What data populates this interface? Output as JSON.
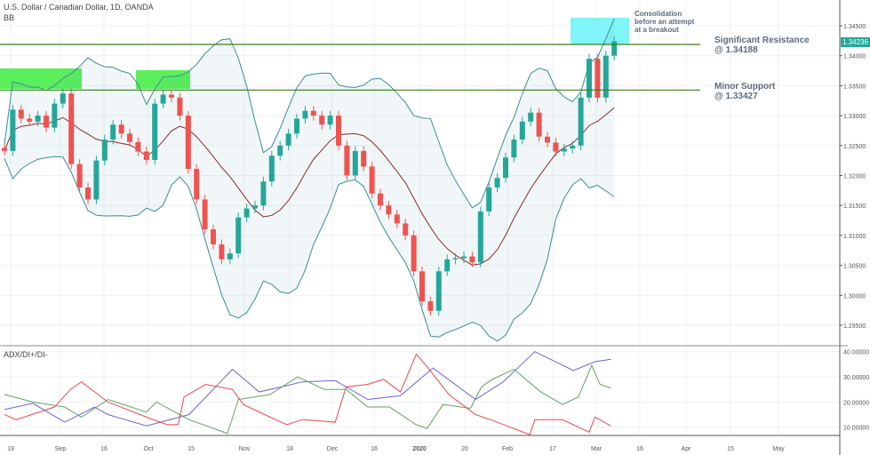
{
  "header": {
    "symbol_title": "U.S. Dollar / Canadian Dollar, 1D, OANDA",
    "indicator": "BB"
  },
  "colors": {
    "up": "#26a69a",
    "down": "#ef5350",
    "bands": "#3d8d96",
    "basis": "#8b2b2b",
    "adx": "#6b63d8",
    "di_plus": "#5fa35f",
    "di_minus": "#e8494d",
    "resistance_line": "#3a7d1c",
    "support_box": "#5bf05b",
    "consolidation_box": "#7ff5f7"
  },
  "annotations": {
    "consolidation": [
      "Consolidation",
      "before an attempt",
      "at a breakout"
    ],
    "resistance": {
      "label": "Significant Resistance",
      "value": "@ 1.34188",
      "price": 1.34188
    },
    "support": {
      "label": "Minor Support",
      "value": "@ 1.33427",
      "price": 1.33427
    }
  },
  "last_price": "1.34236",
  "price_axis": [
    "1.34500",
    "1.34000",
    "1.33500",
    "1.33000",
    "1.32500",
    "1.32000",
    "1.31500",
    "1.31000",
    "1.30500",
    "1.30000",
    "1.29500"
  ],
  "time_axis": [
    "19",
    "Sep",
    "16",
    "Oct",
    "15",
    "Nov",
    "18",
    "Dec",
    "16",
    "2020",
    "20",
    "Feb",
    "17",
    "Mar",
    "16",
    "Apr",
    "15",
    "May"
  ],
  "chart_data": [
    {
      "type": "candlestick",
      "title": "U.S. Dollar / Canadian Dollar, 1D, OANDA",
      "ylim": [
        1.2925,
        1.3485
      ],
      "closes": [
        1.3241,
        1.331,
        1.3295,
        1.329,
        1.33,
        1.328,
        1.332,
        1.3337,
        1.3219,
        1.318,
        1.316,
        1.3225,
        1.326,
        1.3285,
        1.327,
        1.3256,
        1.324,
        1.3226,
        1.332,
        1.3335,
        1.333,
        1.33,
        1.3211,
        1.316,
        1.311,
        1.3085,
        1.306,
        1.307,
        1.313,
        1.3145,
        1.315,
        1.319,
        1.3233,
        1.325,
        1.327,
        1.3295,
        1.3308,
        1.33,
        1.3285,
        1.33,
        1.325,
        1.32,
        1.3241,
        1.3215,
        1.317,
        1.315,
        1.3135,
        1.312,
        1.31,
        1.304,
        1.299,
        1.2974,
        1.304,
        1.306,
        1.3062,
        1.3065,
        1.3055,
        1.314,
        1.318,
        1.3196,
        1.323,
        1.326,
        1.329,
        1.3305,
        1.3265,
        1.3255,
        1.324,
        1.3245,
        1.325,
        1.333,
        1.3395,
        1.333,
        1.34,
        1.3424
      ],
      "indicator": "BB"
    },
    {
      "type": "line",
      "title": "ADX/DI+/DI-",
      "ylim": [
        5,
        42
      ],
      "ticks": [
        "40.00000",
        "30.00000",
        "20.00000",
        "10.00000"
      ],
      "series": [
        {
          "key": "adx",
          "points": [
            [
              0,
              17
            ],
            [
              3.4,
              19.5
            ],
            [
              7.2,
              12
            ],
            [
              10.8,
              18
            ],
            [
              12.4,
              15
            ],
            [
              17,
              10.5
            ],
            [
              22.1,
              15
            ],
            [
              27.3,
              33
            ],
            [
              30.5,
              24
            ],
            [
              33.1,
              26
            ],
            [
              35.7,
              28
            ],
            [
              39.6,
              28.5
            ],
            [
              43.5,
              21
            ],
            [
              47.4,
              22.5
            ],
            [
              51.3,
              33.5
            ],
            [
              56.4,
              21
            ],
            [
              59.7,
              28
            ],
            [
              63.5,
              40
            ],
            [
              68.1,
              32.5
            ],
            [
              70.7,
              36
            ],
            [
              72.6,
              37
            ]
          ]
        },
        {
          "key": "di_plus",
          "points": [
            [
              0,
              23
            ],
            [
              3.4,
              20
            ],
            [
              7.2,
              18
            ],
            [
              9.2,
              14
            ],
            [
              12.4,
              21
            ],
            [
              17,
              16
            ],
            [
              18.2,
              20
            ],
            [
              22.1,
              13
            ],
            [
              26.7,
              7.5
            ],
            [
              28,
              21
            ],
            [
              31.8,
              23
            ],
            [
              35.1,
              30
            ],
            [
              38.3,
              25
            ],
            [
              40.9,
              25
            ],
            [
              43.5,
              18
            ],
            [
              46.1,
              18
            ],
            [
              49.3,
              11
            ],
            [
              50.6,
              9.5
            ],
            [
              52.5,
              19
            ],
            [
              55.8,
              17.5
            ],
            [
              57.1,
              26
            ],
            [
              58.4,
              29
            ],
            [
              61,
              33
            ],
            [
              64.2,
              24
            ],
            [
              66.8,
              19
            ],
            [
              68.7,
              22
            ],
            [
              70.3,
              34.5
            ],
            [
              71.3,
              27
            ],
            [
              72.6,
              25.5
            ]
          ]
        },
        {
          "key": "di_minus",
          "points": [
            [
              0,
              15
            ],
            [
              1.4,
              13
            ],
            [
              6,
              18
            ],
            [
              7.9,
              25
            ],
            [
              9.2,
              28
            ],
            [
              12.4,
              20
            ],
            [
              17,
              14
            ],
            [
              19.5,
              11
            ],
            [
              20.8,
              11
            ],
            [
              21.5,
              22
            ],
            [
              24.1,
              27
            ],
            [
              27.3,
              25
            ],
            [
              28.6,
              19
            ],
            [
              31.8,
              14
            ],
            [
              33.8,
              11
            ],
            [
              35.7,
              13
            ],
            [
              39.6,
              12
            ],
            [
              40.9,
              26
            ],
            [
              43.5,
              27
            ],
            [
              45.4,
              29
            ],
            [
              47.4,
              24
            ],
            [
              49.3,
              39
            ],
            [
              50.6,
              34
            ],
            [
              53.2,
              23
            ],
            [
              56.4,
              15
            ],
            [
              59,
              12
            ],
            [
              62.9,
              7
            ],
            [
              63.5,
              13
            ],
            [
              66.8,
              13
            ],
            [
              70,
              8
            ],
            [
              70.7,
              14
            ],
            [
              72.6,
              10.5
            ]
          ]
        }
      ]
    }
  ]
}
